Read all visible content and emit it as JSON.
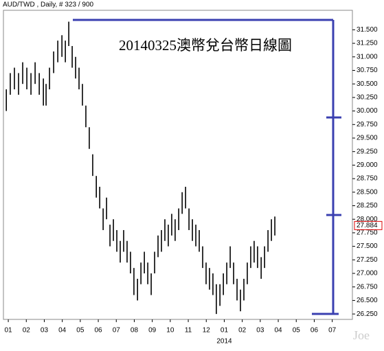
{
  "chart_data": {
    "type": "hlc-bars",
    "title": "AUD/TWD , Daily, # 323 / 900",
    "annotation": "20140325澳幣兌台幣日線圖",
    "watermark": "Joe",
    "year_label": "2014",
    "color": "#000000",
    "last_price": 27.884,
    "x": [
      -0.11,
      0.11,
      0.34,
      0.57,
      0.8,
      1.03,
      1.26,
      1.49,
      1.72,
      1.95,
      2.1,
      2.29,
      2.52,
      2.75,
      2.98,
      3.17,
      3.36,
      3.55,
      3.74,
      3.93,
      4.12,
      4.31,
      4.5,
      4.69,
      4.89,
      5.08,
      5.27,
      5.46,
      5.65,
      5.84,
      6.03,
      6.22,
      6.41,
      6.6,
      6.79,
      6.98,
      7.18,
      7.37,
      7.56,
      7.75,
      7.94,
      8.13,
      8.32,
      8.51,
      8.7,
      8.89,
      9.08,
      9.27,
      9.47,
      9.66,
      9.85,
      10.04,
      10.23,
      10.42,
      10.61,
      10.8,
      10.99,
      11.18,
      11.37,
      11.56,
      11.76,
      11.95,
      12.14,
      12.33,
      12.52,
      12.71,
      12.9,
      13.09,
      13.28,
      13.47,
      13.66,
      13.85,
      14.05,
      14.24,
      14.43,
      14.62,
      14.81
    ],
    "low": [
      30.0,
      30.3,
      30.4,
      30.3,
      30.5,
      30.4,
      30.3,
      30.5,
      30.3,
      30.1,
      30.1,
      30.4,
      30.7,
      30.9,
      31.0,
      30.9,
      31.2,
      30.8,
      30.6,
      30.4,
      30.1,
      29.7,
      29.3,
      28.8,
      28.4,
      28.2,
      27.8,
      28.0,
      27.5,
      27.6,
      27.4,
      27.2,
      27.4,
      27.2,
      27.0,
      26.6,
      26.5,
      26.8,
      27.0,
      26.8,
      26.6,
      27.0,
      27.3,
      27.4,
      27.6,
      27.5,
      27.7,
      27.6,
      27.8,
      28.1,
      28.2,
      27.8,
      27.6,
      27.5,
      27.4,
      27.1,
      26.8,
      26.7,
      26.6,
      26.25,
      26.4,
      26.6,
      26.8,
      27.1,
      26.8,
      26.5,
      26.3,
      26.5,
      26.8,
      27.1,
      27.2,
      27.1,
      26.9,
      27.1,
      27.4,
      27.6,
      27.7
    ],
    "high": [
      30.4,
      30.7,
      30.8,
      30.7,
      30.9,
      30.8,
      30.7,
      30.9,
      30.7,
      30.6,
      30.5,
      30.8,
      31.1,
      31.3,
      31.4,
      31.3,
      31.65,
      31.2,
      31.0,
      30.8,
      30.5,
      30.1,
      29.7,
      29.2,
      28.8,
      28.6,
      28.2,
      28.4,
      27.9,
      28.0,
      27.8,
      27.6,
      27.8,
      27.6,
      27.4,
      27.1,
      26.9,
      27.2,
      27.4,
      27.2,
      27.0,
      27.4,
      27.7,
      27.8,
      28.0,
      27.9,
      28.1,
      28.0,
      28.2,
      28.5,
      28.6,
      28.2,
      28.0,
      27.9,
      27.8,
      27.5,
      27.2,
      27.1,
      27.0,
      26.8,
      26.8,
      27.0,
      27.2,
      27.5,
      27.2,
      26.9,
      26.7,
      26.9,
      27.2,
      27.5,
      27.6,
      27.5,
      27.3,
      27.5,
      27.8,
      28.0,
      28.05
    ],
    "xlim": [
      -0.27,
      19.12
    ],
    "xticks": [
      {
        "value": 0,
        "label": "01"
      },
      {
        "value": 1,
        "label": "02"
      },
      {
        "value": 2,
        "label": "03"
      },
      {
        "value": 3,
        "label": "04"
      },
      {
        "value": 4,
        "label": "05"
      },
      {
        "value": 5,
        "label": "06"
      },
      {
        "value": 6,
        "label": "07"
      },
      {
        "value": 7,
        "label": "08"
      },
      {
        "value": 8,
        "label": "09"
      },
      {
        "value": 9,
        "label": "10"
      },
      {
        "value": 10,
        "label": "11"
      },
      {
        "value": 11,
        "label": "12"
      },
      {
        "value": 12,
        "label": "01"
      },
      {
        "value": 13,
        "label": "02"
      },
      {
        "value": 14,
        "label": "03"
      },
      {
        "value": 15,
        "label": "04"
      },
      {
        "value": 16,
        "label": "05"
      },
      {
        "value": 17,
        "label": "06"
      },
      {
        "value": 18,
        "label": "07"
      }
    ],
    "ylim": [
      26.15,
      31.86
    ],
    "yticks": [
      {
        "value": 26.25,
        "label": "26.250"
      },
      {
        "value": 26.5,
        "label": "26.500"
      },
      {
        "value": 26.75,
        "label": "26.750"
      },
      {
        "value": 27,
        "label": "27.000"
      },
      {
        "value": 27.25,
        "label": "27.250"
      },
      {
        "value": 27.5,
        "label": "27.500"
      },
      {
        "value": 27.75,
        "label": "27.750"
      },
      {
        "value": 28,
        "label": "28.000"
      },
      {
        "value": 28.25,
        "label": "28.250"
      },
      {
        "value": 28.5,
        "label": "28.500"
      },
      {
        "value": 28.75,
        "label": "28.750"
      },
      {
        "value": 29,
        "label": "29.000"
      },
      {
        "value": 29.25,
        "label": "29.250"
      },
      {
        "value": 29.5,
        "label": "29.500"
      },
      {
        "value": 29.75,
        "label": "29.750"
      },
      {
        "value": 30,
        "label": "30.000"
      },
      {
        "value": 30.25,
        "label": "30.250"
      },
      {
        "value": 30.5,
        "label": "30.500"
      },
      {
        "value": 30.75,
        "label": "30.750"
      },
      {
        "value": 31,
        "label": "31.000"
      },
      {
        "value": 31.25,
        "label": "31.250"
      },
      {
        "value": 31.5,
        "label": "31.500"
      }
    ]
  }
}
